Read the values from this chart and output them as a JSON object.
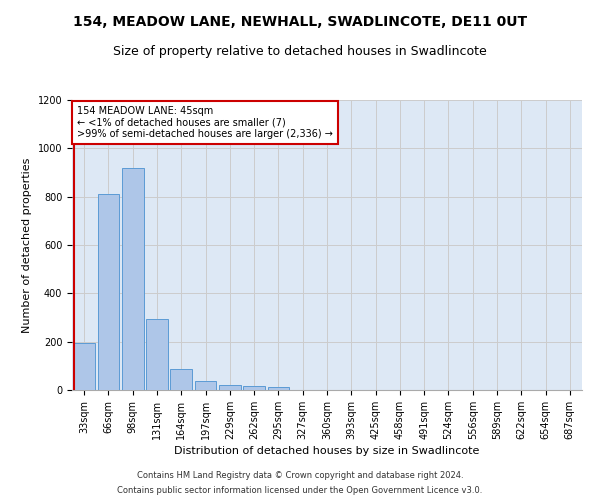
{
  "title1": "154, MEADOW LANE, NEWHALL, SWADLINCOTE, DE11 0UT",
  "title2": "Size of property relative to detached houses in Swadlincote",
  "xlabel": "Distribution of detached houses by size in Swadlincote",
  "ylabel": "Number of detached properties",
  "footnote1": "Contains HM Land Registry data © Crown copyright and database right 2024.",
  "footnote2": "Contains public sector information licensed under the Open Government Licence v3.0.",
  "bin_labels": [
    "33sqm",
    "66sqm",
    "98sqm",
    "131sqm",
    "164sqm",
    "197sqm",
    "229sqm",
    "262sqm",
    "295sqm",
    "327sqm",
    "360sqm",
    "393sqm",
    "425sqm",
    "458sqm",
    "491sqm",
    "524sqm",
    "556sqm",
    "589sqm",
    "622sqm",
    "654sqm",
    "687sqm"
  ],
  "bar_values": [
    195,
    810,
    920,
    295,
    88,
    38,
    22,
    18,
    14,
    0,
    0,
    0,
    0,
    0,
    0,
    0,
    0,
    0,
    0,
    0,
    0
  ],
  "bar_color": "#aec6e8",
  "bar_edgecolor": "#5b9bd5",
  "highlight_color": "#cc0000",
  "annotation_line1": "154 MEADOW LANE: 45sqm",
  "annotation_line2": "← <1% of detached houses are smaller (7)",
  "annotation_line3": ">99% of semi-detached houses are larger (2,336) →",
  "annotation_box_color": "#ffffff",
  "annotation_box_edgecolor": "#cc0000",
  "ylim": [
    0,
    1200
  ],
  "yticks": [
    0,
    200,
    400,
    600,
    800,
    1000,
    1200
  ],
  "grid_color": "#cccccc",
  "bg_color": "#dde8f5",
  "fig_bg": "#ffffff",
  "title_fontsize": 10,
  "subtitle_fontsize": 9,
  "axis_label_fontsize": 8,
  "tick_fontsize": 7,
  "footnote_fontsize": 6
}
